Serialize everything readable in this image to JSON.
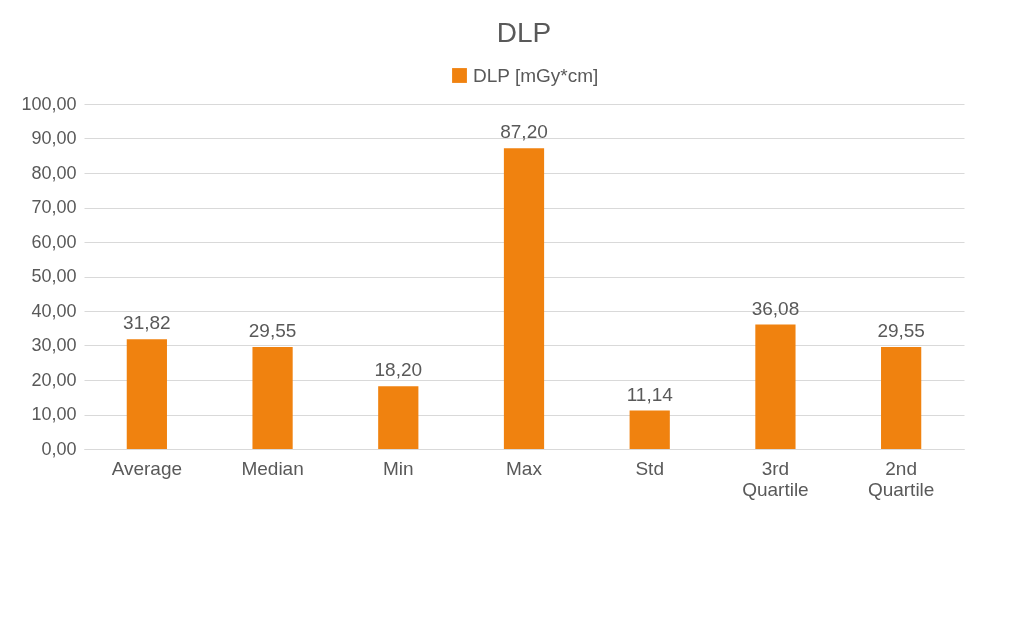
{
  "chart_data": {
    "type": "bar",
    "title": "DLP",
    "categories": [
      "Average",
      "Median",
      "Min",
      "Max",
      "Std",
      "3rd Quartile",
      "2nd Quartile"
    ],
    "series": [
      {
        "name": "DLP [mGy*cm]",
        "color": "#f0820f",
        "values": [
          31.82,
          29.55,
          18.2,
          87.2,
          11.14,
          36.08,
          29.55
        ],
        "value_labels": [
          "31,82",
          "29,55",
          "18,20",
          "87,20",
          "11,14",
          "36,08",
          "29,55"
        ]
      }
    ],
    "ylim": [
      0,
      100
    ],
    "yticks": [
      {
        "value": 0,
        "label": "0,00"
      },
      {
        "value": 10,
        "label": "10,00"
      },
      {
        "value": 20,
        "label": "20,00"
      },
      {
        "value": 30,
        "label": "30,00"
      },
      {
        "value": 40,
        "label": "40,00"
      },
      {
        "value": 50,
        "label": "50,00"
      },
      {
        "value": 60,
        "label": "60,00"
      },
      {
        "value": 70,
        "label": "70,00"
      },
      {
        "value": 80,
        "label": "80,00"
      },
      {
        "value": 90,
        "label": "90,00"
      },
      {
        "value": 100,
        "label": "100,00"
      }
    ],
    "grid": "y",
    "legend": "top"
  }
}
